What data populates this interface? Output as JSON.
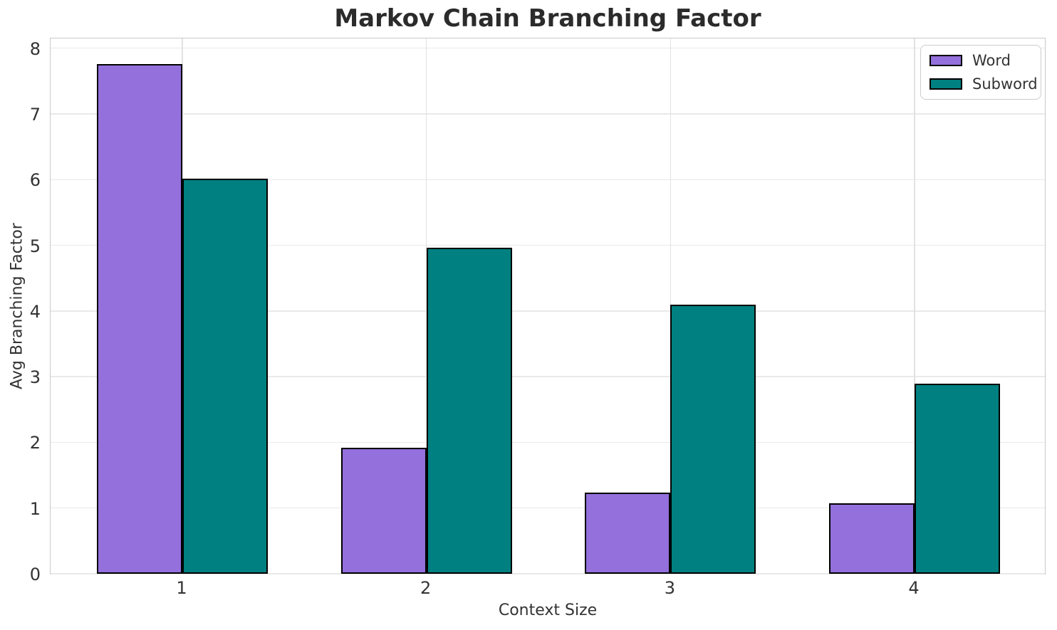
{
  "chart_data": {
    "type": "bar",
    "title": "Markov Chain Branching Factor",
    "xlabel": "Context Size",
    "ylabel": "Avg Branching Factor",
    "categories": [
      "1",
      "2",
      "3",
      "4"
    ],
    "series": [
      {
        "name": "Word",
        "color": "#9370DB",
        "values": [
          7.76,
          1.92,
          1.24,
          1.07
        ]
      },
      {
        "name": "Subword",
        "color": "#008080",
        "values": [
          6.01,
          4.96,
          4.1,
          2.89
        ]
      }
    ],
    "ylim": [
      0,
      8.17
    ],
    "yticks": [
      0,
      1,
      2,
      3,
      4,
      5,
      6,
      7,
      8
    ],
    "grid": true,
    "legend_position": "upper right",
    "bar_edge_color": "#000000",
    "colors": {
      "title_text": "#2b2b2b",
      "tick_text": "#333333",
      "gridline": "#e9e9e9",
      "spine": "#c9c9c9",
      "background": "#ffffff"
    }
  }
}
